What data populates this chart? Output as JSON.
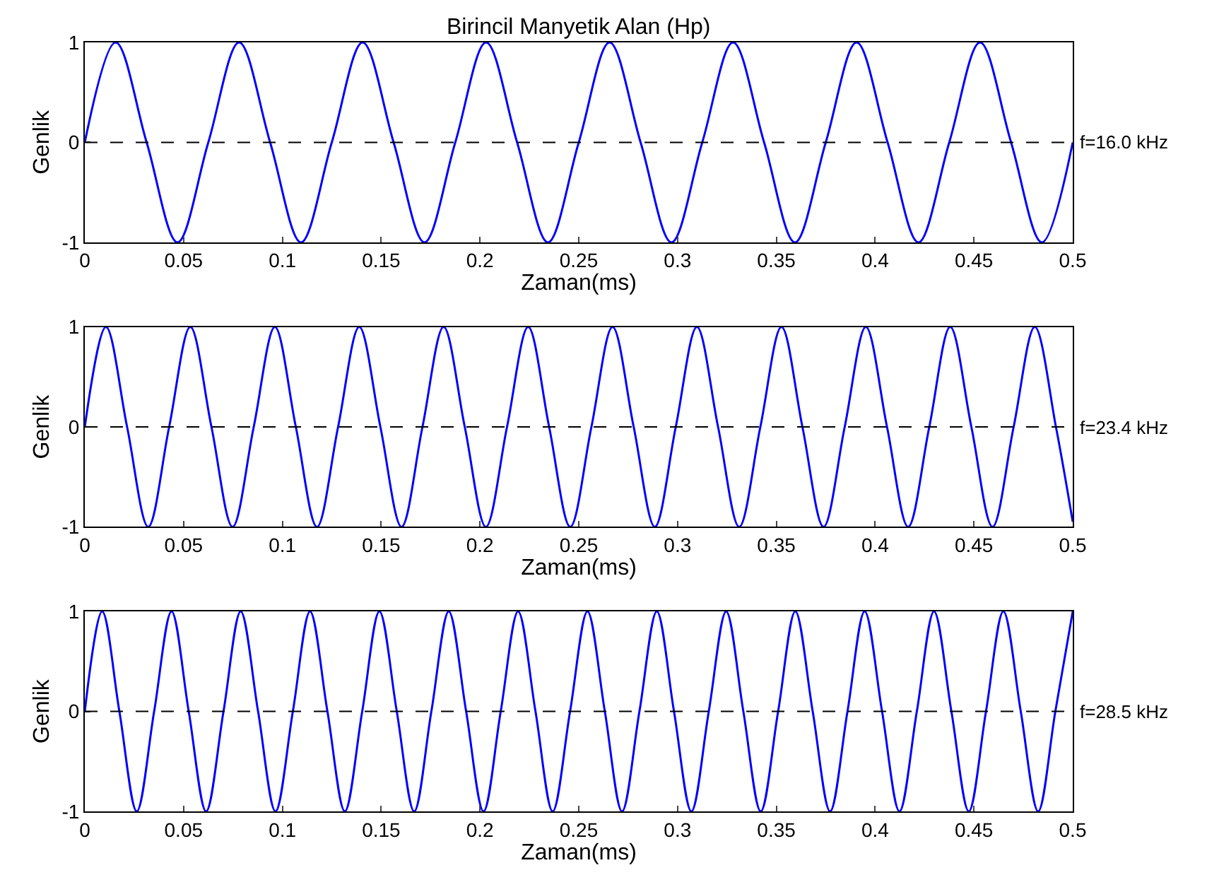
{
  "chart_data": [
    {
      "type": "line",
      "title": "Birincil Manyetik Alan (Hp)",
      "xlabel": "Zaman(ms)",
      "ylabel": "Genlik",
      "annotations": [
        "f=16.0 kHz"
      ],
      "xlim": [
        0,
        0.5
      ],
      "xticks": [
        0,
        0.05,
        0.1,
        0.15,
        0.2,
        0.25,
        0.3,
        0.35,
        0.4,
        0.45,
        0.5
      ],
      "ylim": [
        -1,
        1
      ],
      "yticks": [
        -1,
        0,
        1
      ],
      "ref_lines": [
        {
          "axis": "y",
          "value": 0,
          "color": "#000000",
          "line_style": "dashed"
        }
      ],
      "x": [
        0,
        0.0156,
        0.0313,
        0.0469,
        0.0625,
        0.0781,
        0.0938,
        0.1094,
        0.125,
        0.1406,
        0.1563,
        0.1719,
        0.1875,
        0.2031,
        0.2188,
        0.2344,
        0.25,
        0.2656,
        0.2813,
        0.2969,
        0.3125,
        0.3281,
        0.3438,
        0.3594,
        0.375,
        0.3906,
        0.4063,
        0.4219,
        0.4375,
        0.4531,
        0.4688,
        0.4844,
        0.5
      ],
      "series": [
        {
          "color": "#0000ff",
          "values": [
            0,
            1,
            0,
            -1,
            0,
            1,
            0,
            -1,
            0,
            1,
            0,
            -1,
            0,
            1,
            0,
            -1,
            0,
            1,
            0,
            -1,
            0,
            1,
            0,
            -1,
            0,
            1,
            0,
            -1,
            0,
            1,
            0,
            -1,
            0
          ]
        }
      ]
    },
    {
      "type": "line",
      "xlabel": "Zaman(ms)",
      "ylabel": "Genlik",
      "annotations": [
        "f=23.4 kHz"
      ],
      "xlim": [
        0,
        0.5
      ],
      "xticks": [
        0,
        0.05,
        0.1,
        0.15,
        0.2,
        0.25,
        0.3,
        0.35,
        0.4,
        0.45,
        0.5
      ],
      "ylim": [
        -1,
        1
      ],
      "yticks": [
        -1,
        0,
        1
      ],
      "ref_lines": [
        {
          "axis": "y",
          "value": 0,
          "color": "#000000",
          "line_style": "dashed"
        }
      ],
      "x": [
        0,
        0.0107,
        0.0214,
        0.0321,
        0.0427,
        0.0534,
        0.0641,
        0.0748,
        0.0855,
        0.0962,
        0.1068,
        0.1175,
        0.1282,
        0.1389,
        0.1496,
        0.1603,
        0.1709,
        0.1816,
        0.1923,
        0.203,
        0.2137,
        0.2244,
        0.235,
        0.2457,
        0.2564,
        0.2671,
        0.2778,
        0.2885,
        0.2991,
        0.3098,
        0.3205,
        0.3312,
        0.3419,
        0.3526,
        0.3632,
        0.3739,
        0.3846,
        0.3953,
        0.406,
        0.4167,
        0.4274,
        0.438,
        0.4487,
        0.4594,
        0.4701,
        0.4808,
        0.4915,
        0.5
      ],
      "series": [
        {
          "color": "#0000ff",
          "values": [
            0,
            1,
            0,
            -1,
            0,
            1,
            0,
            -1,
            0,
            1,
            0,
            -1,
            0,
            1,
            0,
            -1,
            0,
            1,
            0,
            -1,
            0,
            1,
            0,
            -1,
            0,
            1,
            0,
            -1,
            0,
            1,
            0,
            -1,
            0,
            1,
            0,
            -1,
            0,
            1,
            0,
            -1,
            0,
            1,
            0,
            -1,
            0,
            1,
            0,
            -0.95
          ]
        }
      ]
    },
    {
      "type": "line",
      "xlabel": "Zaman(ms)",
      "ylabel": "Genlik",
      "annotations": [
        "f=28.5 kHz"
      ],
      "xlim": [
        0,
        0.5
      ],
      "xticks": [
        0,
        0.05,
        0.1,
        0.15,
        0.2,
        0.25,
        0.3,
        0.35,
        0.4,
        0.45,
        0.5
      ],
      "ylim": [
        -1,
        1
      ],
      "yticks": [
        -1,
        0,
        1
      ],
      "ref_lines": [
        {
          "axis": "y",
          "value": 0,
          "color": "#000000",
          "line_style": "dashed"
        }
      ],
      "x": [
        0,
        0.0088,
        0.0175,
        0.0263,
        0.0351,
        0.0439,
        0.0526,
        0.0614,
        0.0702,
        0.0789,
        0.0877,
        0.0965,
        0.1053,
        0.114,
        0.1228,
        0.1316,
        0.1404,
        0.1491,
        0.1579,
        0.1667,
        0.1754,
        0.1842,
        0.193,
        0.2018,
        0.2105,
        0.2193,
        0.2281,
        0.2368,
        0.2456,
        0.2544,
        0.2632,
        0.2719,
        0.2807,
        0.2895,
        0.2982,
        0.307,
        0.3158,
        0.3246,
        0.3333,
        0.3421,
        0.3509,
        0.3596,
        0.3684,
        0.3772,
        0.386,
        0.3947,
        0.4035,
        0.4123,
        0.4211,
        0.4298,
        0.4386,
        0.4474,
        0.4561,
        0.4649,
        0.4737,
        0.4825,
        0.4912,
        0.5
      ],
      "series": [
        {
          "color": "#0000ff",
          "values": [
            0,
            1,
            0,
            -1,
            0,
            1,
            0,
            -1,
            0,
            1,
            0,
            -1,
            0,
            1,
            0,
            -1,
            0,
            1,
            0,
            -1,
            0,
            1,
            0,
            -1,
            0,
            1,
            0,
            -1,
            0,
            1,
            0,
            -1,
            0,
            1,
            0,
            -1,
            0,
            1,
            0,
            -1,
            0,
            1,
            0,
            -1,
            0,
            1,
            0,
            -1,
            0,
            1,
            0,
            -1,
            0,
            1,
            0,
            -1,
            0,
            1
          ]
        }
      ]
    }
  ]
}
